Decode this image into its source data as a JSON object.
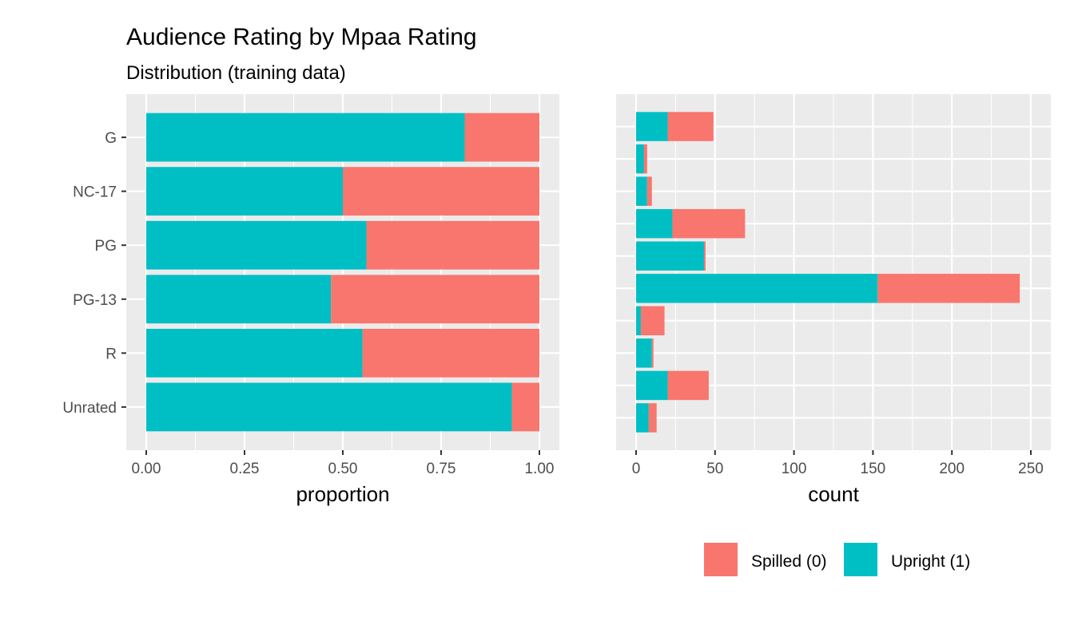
{
  "chart_data": {
    "title": "Audience Rating by Mpaa Rating",
    "subtitle": "Distribution (training data)",
    "colors": {
      "panel": "#EBEBEB",
      "grid": "#FFFFFF",
      "tick": "#4D4D4D"
    },
    "legend": {
      "position": "bottom",
      "entries": [
        {
          "name": "Spilled (0)",
          "color": "#F8766D"
        },
        {
          "name": "Upright (1)",
          "color": "#00BFC4"
        }
      ]
    },
    "panels": [
      {
        "type": "bar",
        "orientation": "horizontal",
        "stacked": true,
        "xlabel": "proportion",
        "xlim": [
          0,
          1
        ],
        "xticks": [
          "0.00",
          "0.25",
          "0.50",
          "0.75",
          "1.00"
        ],
        "xtick_values": [
          0,
          0.25,
          0.5,
          0.75,
          1
        ],
        "categories": [
          "G",
          "NC-17",
          "PG",
          "PG-13",
          "R",
          "Unrated"
        ],
        "series": [
          {
            "name": "Upright (1)",
            "values": [
              0.81,
              0.5,
              0.56,
              0.47,
              0.55,
              0.93
            ]
          },
          {
            "name": "Spilled (0)",
            "values": [
              0.19,
              0.5,
              0.44,
              0.53,
              0.45,
              0.07
            ]
          }
        ]
      },
      {
        "type": "bar",
        "orientation": "horizontal",
        "stacked": true,
        "xlabel": "count",
        "xlim": [
          0,
          250
        ],
        "xticks": [
          "0",
          "50",
          "100",
          "150",
          "200",
          "250"
        ],
        "xtick_values": [
          0,
          50,
          100,
          150,
          200,
          250
        ],
        "bars": 10,
        "series": [
          {
            "name": "Upright (1)",
            "values": [
              20,
              5,
              7,
              23,
              43,
              153,
              3,
              10,
              20,
              8
            ]
          },
          {
            "name": "Spilled (0)",
            "values": [
              29,
              2,
              3,
              46,
              1,
              90,
              15,
              1,
              26,
              5
            ]
          }
        ]
      }
    ]
  }
}
